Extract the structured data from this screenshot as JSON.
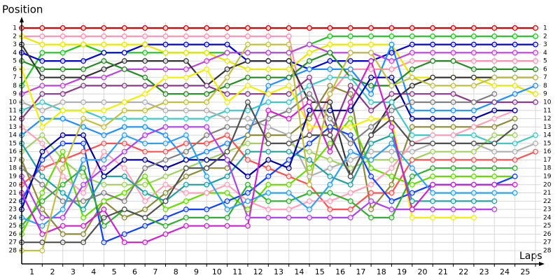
{
  "chart_data": {
    "type": "line",
    "y_label": "Position",
    "x_label": "Laps",
    "x": [
      0,
      1,
      2,
      3,
      4,
      5,
      6,
      7,
      8,
      9,
      10,
      11,
      12,
      13,
      14,
      15,
      16,
      17,
      18,
      19,
      20,
      21,
      22,
      23,
      24,
      25
    ],
    "xlim": [
      0,
      25
    ],
    "xticks": [
      1,
      2,
      3,
      4,
      5,
      6,
      7,
      8,
      9,
      10,
      11,
      12,
      13,
      14,
      15,
      16,
      17,
      18,
      19,
      20,
      21,
      22,
      23,
      24,
      25
    ],
    "ylim": [
      1,
      28
    ],
    "y_inverted": true,
    "yticks": [
      1,
      2,
      3,
      4,
      5,
      6,
      7,
      8,
      9,
      10,
      11,
      12,
      13,
      14,
      15,
      16,
      17,
      18,
      19,
      20,
      21,
      22,
      23,
      24,
      25,
      26,
      27,
      28
    ],
    "grid": true,
    "series": [
      {
        "color": "#e00000",
        "values": [
          1,
          1,
          1,
          1,
          1,
          1,
          1,
          1,
          1,
          1,
          1,
          1,
          1,
          1,
          1,
          1,
          1,
          1,
          1,
          1,
          1,
          1,
          1,
          1,
          1,
          1
        ]
      },
      {
        "color": "#ff8fb0",
        "values": [
          2,
          2,
          2,
          2,
          2,
          2,
          2,
          2,
          2,
          2,
          2,
          2,
          2,
          2,
          14,
          9,
          6,
          6,
          6,
          5,
          5,
          5,
          5,
          5,
          5,
          5
        ]
      },
      {
        "color": "#22c322",
        "values": [
          8,
          4,
          4,
          3,
          4,
          4,
          4,
          4,
          4,
          4,
          4,
          4,
          4,
          4,
          3,
          2,
          2,
          2,
          2,
          2,
          2,
          2,
          2,
          2,
          2,
          2
        ]
      },
      {
        "color": "#0000e0",
        "values": [
          4,
          5,
          5,
          5,
          4,
          4,
          3,
          3,
          3,
          3,
          3,
          5,
          5,
          5,
          6,
          5,
          5,
          5,
          4,
          3,
          3,
          3,
          3,
          3,
          3,
          3
        ]
      },
      {
        "color": "#e8e800",
        "values": [
          2,
          3,
          3,
          3,
          3,
          3,
          3,
          4,
          4,
          4,
          5,
          6,
          6,
          6,
          4,
          3,
          3,
          3,
          3,
          7,
          7,
          7,
          7,
          8,
          8,
          9
        ]
      },
      {
        "color": "#c040e0",
        "values": [
          9,
          8,
          8,
          7,
          7,
          6,
          6,
          6,
          6,
          5,
          4,
          4,
          4,
          4,
          3,
          4,
          4,
          4,
          5,
          4,
          4,
          4,
          4,
          4,
          4,
          4
        ]
      },
      {
        "color": "#1e90ff",
        "values": [
          14,
          12,
          12,
          13,
          14,
          13,
          13,
          14,
          17,
          16,
          15,
          14,
          8,
          7,
          6,
          6,
          6,
          9,
          3,
          11,
          11,
          11,
          11,
          10,
          9,
          8
        ]
      },
      {
        "color": "#333333",
        "values": [
          3,
          7,
          7,
          7,
          6,
          5,
          5,
          5,
          5,
          8,
          6,
          5,
          5,
          5,
          10,
          10,
          19,
          14,
          10,
          8,
          7,
          7,
          7,
          7,
          7,
          7
        ]
      },
      {
        "color": "#228b22",
        "values": [
          5,
          6,
          6,
          6,
          5,
          6,
          7,
          9,
          9,
          9,
          8,
          7,
          7,
          7,
          5,
          4,
          7,
          8,
          8,
          6,
          5,
          5,
          6,
          6,
          6,
          6
        ]
      },
      {
        "color": "#8b8b3a",
        "values": [
          17,
          23,
          26,
          26,
          22,
          24,
          23,
          21,
          19,
          18,
          18,
          14,
          14,
          14,
          12,
          8,
          9,
          23,
          20,
          13,
          13,
          13,
          13,
          13,
          12,
          null
        ]
      },
      {
        "color": "#40c8c8",
        "values": [
          11,
          10,
          11,
          11,
          12,
          12,
          12,
          12,
          12,
          12,
          11,
          11,
          10,
          10,
          8,
          7,
          7,
          10,
          10,
          14,
          14,
          14,
          14,
          15,
          15,
          14
        ]
      },
      {
        "color": "#b0b0b0",
        "values": [
          10,
          11,
          10,
          10,
          10,
          10,
          10,
          11,
          11,
          11,
          12,
          12,
          13,
          14,
          19,
          18,
          17,
          16,
          16,
          16,
          15,
          15,
          15,
          16,
          16,
          15
        ]
      },
      {
        "color": "#a0d060",
        "values": [
          16,
          14,
          17,
          19,
          20,
          20,
          20,
          19,
          18,
          17,
          16,
          15,
          15,
          15,
          16,
          17,
          18,
          17,
          17,
          17,
          16,
          16,
          16,
          14,
          14,
          null
        ]
      },
      {
        "color": "#8b3a8b",
        "values": [
          12,
          9,
          9,
          8,
          8,
          8,
          8,
          8,
          8,
          8,
          9,
          9,
          9,
          9,
          7,
          14,
          8,
          11,
          9,
          9,
          9,
          9,
          10,
          10,
          10,
          10
        ]
      },
      {
        "color": "#ff5050",
        "values": [
          20,
          18,
          17,
          16,
          15,
          15,
          16,
          16,
          15,
          15,
          14,
          17,
          18,
          19,
          20,
          23,
          23,
          21,
          21,
          17,
          17,
          17,
          17,
          17,
          17,
          16
        ]
      },
      {
        "color": "#66dd00",
        "values": [
          26,
          21,
          16,
          24,
          22,
          21,
          19,
          23,
          22,
          21,
          21,
          23,
          20,
          20,
          18,
          15,
          12,
          18,
          19,
          20,
          19,
          19,
          19,
          19,
          19,
          null
        ]
      },
      {
        "color": "#ffa0b8",
        "values": [
          13,
          15,
          19,
          21,
          16,
          18,
          22,
          20,
          21,
          21,
          20,
          22,
          23,
          23,
          22,
          22,
          21,
          20,
          18,
          15,
          14,
          14,
          13,
          12,
          11,
          null
        ]
      },
      {
        "color": "#f0f000",
        "values": [
          6,
          13,
          11,
          11,
          11,
          10,
          9,
          7,
          7,
          6,
          10,
          8,
          9,
          8,
          13,
          13,
          13,
          12,
          12,
          24,
          24,
          24,
          24,
          null,
          null,
          null
        ]
      },
      {
        "color": "#1040ff",
        "values": [
          22,
          17,
          15,
          15,
          27,
          26,
          25,
          24,
          23,
          23,
          22,
          21,
          19,
          17,
          15,
          13,
          14,
          19,
          22,
          21,
          20,
          20,
          20,
          20,
          19,
          null
        ]
      },
      {
        "color": "#20a0a0",
        "values": [
          15,
          19,
          21,
          23,
          19,
          19,
          21,
          22,
          20,
          20,
          19,
          16,
          16,
          16,
          17,
          19,
          20,
          15,
          14,
          22,
          22,
          22,
          22,
          22,
          null,
          null
        ]
      },
      {
        "color": "#0000a0",
        "values": [
          23,
          16,
          14,
          14,
          19,
          17,
          17,
          18,
          17,
          17,
          17,
          19,
          17,
          18,
          11,
          11,
          11,
          7,
          7,
          12,
          12,
          12,
          12,
          11,
          11,
          null
        ]
      },
      {
        "color": "#30b030",
        "values": [
          25,
          22,
          20,
          18,
          25,
          23,
          24,
          25,
          24,
          24,
          24,
          20,
          22,
          22,
          21,
          21,
          22,
          24,
          24,
          19,
          18,
          18,
          18,
          18,
          18,
          null
        ]
      },
      {
        "color": "#808080",
        "values": [
          18,
          20,
          22,
          22,
          21,
          22,
          18,
          17,
          16,
          14,
          13,
          13,
          12,
          11,
          9,
          12,
          15,
          13,
          11,
          10,
          10,
          10,
          10,
          9,
          null,
          null
        ]
      },
      {
        "color": "#b040f0",
        "values": [
          19,
          24,
          24,
          20,
          18,
          16,
          14,
          13,
          13,
          13,
          17,
          24,
          24,
          24,
          24,
          24,
          24,
          22,
          23,
          23,
          23,
          23,
          23,
          23,
          null,
          null
        ]
      },
      {
        "color": "#30a0f0",
        "values": [
          24,
          25,
          23,
          17,
          17,
          14,
          15,
          15,
          14,
          19,
          23,
          22,
          21,
          21,
          23,
          20,
          16,
          17,
          15,
          18,
          21,
          21,
          21,
          21,
          21,
          null
        ]
      },
      {
        "color": "#d020d0",
        "values": [
          21,
          26,
          25,
          25,
          23,
          27,
          27,
          26,
          25,
          25,
          25,
          25,
          11,
          12,
          10,
          16,
          10,
          5,
          13,
          23,
          20,
          20,
          20,
          20,
          20,
          null
        ]
      },
      {
        "color": "#505050",
        "values": [
          27,
          27,
          27,
          27,
          24,
          23,
          24,
          22,
          18,
          18,
          16,
          10,
          15,
          15,
          14,
          14,
          19,
          14,
          12,
          15,
          15,
          15,
          15,
          15,
          13,
          null
        ]
      },
      {
        "color": "#c0c040",
        "values": [
          28,
          28,
          18,
          12,
          13,
          11,
          11,
          10,
          10,
          10,
          7,
          3,
          3,
          3,
          20,
          9,
          4,
          4,
          8,
          7,
          8,
          8,
          8,
          7,
          7,
          7
        ]
      }
    ]
  }
}
